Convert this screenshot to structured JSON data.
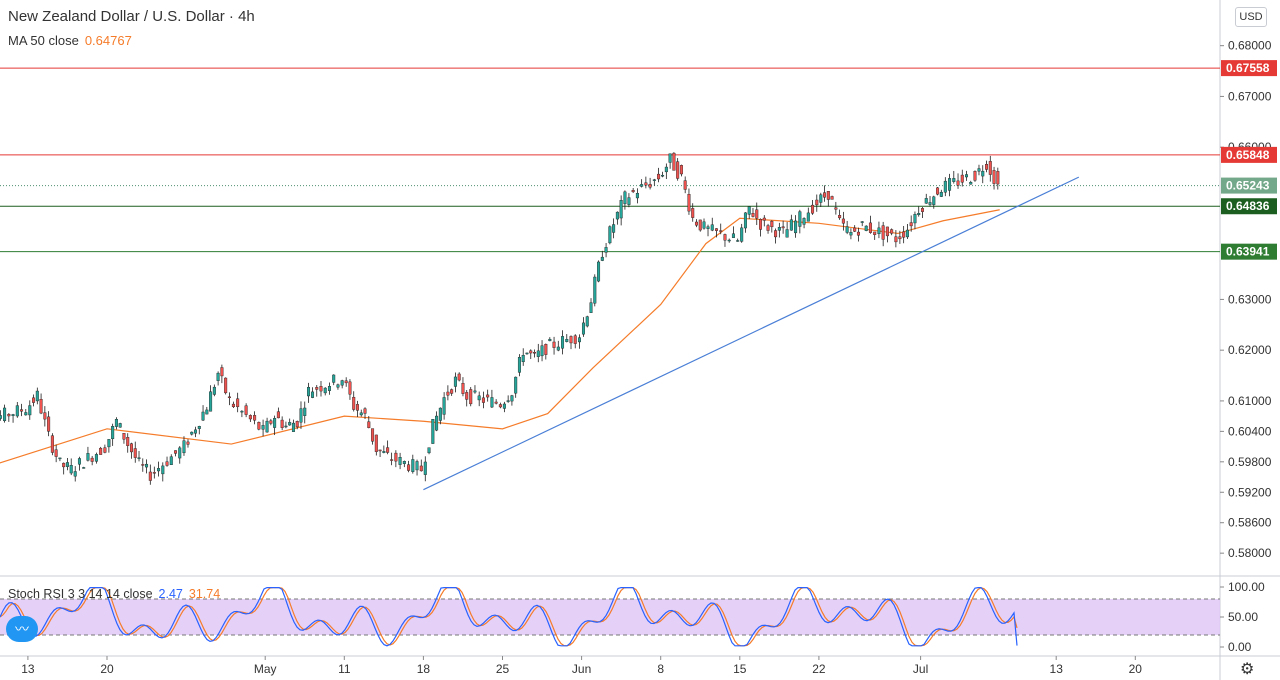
{
  "header": {
    "title": "New Zealand Dollar / U.S. Dollar · 4h",
    "ma_label": "MA 50 close",
    "ma_value": "0.64767",
    "currency": "USD"
  },
  "stoch": {
    "label": "Stoch RSI 3 3 14 14 close",
    "k_value": "2.47",
    "d_value": "31.74"
  },
  "chart_data": [
    {
      "type": "line",
      "symbol": "NZDUSD",
      "timeframe": "4h",
      "price_axis": {
        "ylim": [
          0.5755,
          0.689
        ],
        "ticks": [
          "0.68000",
          "0.67000",
          "0.66000",
          "0.63000",
          "0.62000",
          "0.61000",
          "0.60400",
          "0.59800",
          "0.59200",
          "0.58600",
          "0.58000"
        ]
      },
      "time_axis": {
        "labels": [
          "13",
          "20",
          "May",
          "11",
          "18",
          "25",
          "Jun",
          "8",
          "15",
          "22",
          "Jul",
          "13",
          "20"
        ],
        "positions": [
          "Apr 13",
          "Apr 20",
          "May 4",
          "May 11",
          "May 18",
          "May 25",
          "Jun 1",
          "Jun 8",
          "Jun 15",
          "Jun 22",
          "Jul 1",
          "Jul 13",
          "Jul 20"
        ]
      },
      "price_path": [
        {
          "date": "Apr 8",
          "close": 0.602
        },
        {
          "date": "Apr 10",
          "close": 0.6065
        },
        {
          "date": "Apr 13",
          "close": 0.6085
        },
        {
          "date": "Apr 14",
          "close": 0.611
        },
        {
          "date": "Apr 15",
          "close": 0.603
        },
        {
          "date": "Apr 16",
          "close": 0.5975
        },
        {
          "date": "Apr 17",
          "close": 0.5965
        },
        {
          "date": "Apr 20",
          "close": 0.601
        },
        {
          "date": "Apr 21",
          "close": 0.606
        },
        {
          "date": "Apr 22",
          "close": 0.6015
        },
        {
          "date": "Apr 23",
          "close": 0.5975
        },
        {
          "date": "Apr 24",
          "close": 0.5955
        },
        {
          "date": "Apr 27",
          "close": 0.601
        },
        {
          "date": "Apr 28",
          "close": 0.605
        },
        {
          "date": "Apr 29",
          "close": 0.609
        },
        {
          "date": "Apr 30",
          "close": 0.6155
        },
        {
          "date": "May 1",
          "close": 0.61
        },
        {
          "date": "May 4",
          "close": 0.604
        },
        {
          "date": "May 5",
          "close": 0.607
        },
        {
          "date": "May 6",
          "close": 0.605
        },
        {
          "date": "May 7",
          "close": 0.606
        },
        {
          "date": "May 8",
          "close": 0.612
        },
        {
          "date": "May 11",
          "close": 0.6145
        },
        {
          "date": "May 12",
          "close": 0.609
        },
        {
          "date": "May 13",
          "close": 0.607
        },
        {
          "date": "May 14",
          "close": 0.6005
        },
        {
          "date": "May 15",
          "close": 0.599
        },
        {
          "date": "May 18",
          "close": 0.5965
        },
        {
          "date": "May 19",
          "close": 0.605
        },
        {
          "date": "May 20",
          "close": 0.6105
        },
        {
          "date": "May 21",
          "close": 0.614
        },
        {
          "date": "May 22",
          "close": 0.611
        },
        {
          "date": "May 25",
          "close": 0.6095
        },
        {
          "date": "May 26",
          "close": 0.612
        },
        {
          "date": "May 27",
          "close": 0.62
        },
        {
          "date": "May 28",
          "close": 0.6185
        },
        {
          "date": "May 29",
          "close": 0.6205
        },
        {
          "date": "Jun 1",
          "close": 0.623
        },
        {
          "date": "Jun 2",
          "close": 0.63
        },
        {
          "date": "Jun 3",
          "close": 0.6395
        },
        {
          "date": "Jun 4",
          "close": 0.645
        },
        {
          "date": "Jun 5",
          "close": 0.65
        },
        {
          "date": "Jun 8",
          "close": 0.654
        },
        {
          "date": "Jun 9",
          "close": 0.6575
        },
        {
          "date": "Jun 10",
          "close": 0.654
        },
        {
          "date": "Jun 11",
          "close": 0.646
        },
        {
          "date": "Jun 12",
          "close": 0.644
        },
        {
          "date": "Jun 15",
          "close": 0.6415
        },
        {
          "date": "Jun 16",
          "close": 0.648
        },
        {
          "date": "Jun 17",
          "close": 0.645
        },
        {
          "date": "Jun 18",
          "close": 0.644
        },
        {
          "date": "Jun 19",
          "close": 0.643
        },
        {
          "date": "Jun 22",
          "close": 0.649
        },
        {
          "date": "Jun 23",
          "close": 0.651
        },
        {
          "date": "Jun 24",
          "close": 0.645
        },
        {
          "date": "Jun 25",
          "close": 0.643
        },
        {
          "date": "Jun 26",
          "close": 0.6445
        },
        {
          "date": "Jun 29",
          "close": 0.642
        },
        {
          "date": "Jun 30",
          "close": 0.644
        },
        {
          "date": "Jul 1",
          "close": 0.648
        },
        {
          "date": "Jul 2",
          "close": 0.65
        },
        {
          "date": "Jul 3",
          "close": 0.652
        },
        {
          "date": "Jul 6",
          "close": 0.6545
        },
        {
          "date": "Jul 7",
          "close": 0.657
        },
        {
          "date": "Jul 8",
          "close": 0.6524
        }
      ],
      "ma50_path": [
        {
          "date": "Apr 8",
          "value": 0.596
        },
        {
          "date": "Apr 20",
          "value": 0.6045
        },
        {
          "date": "May 1",
          "value": 0.6015
        },
        {
          "date": "May 11",
          "value": 0.607
        },
        {
          "date": "May 18",
          "value": 0.606
        },
        {
          "date": "May 25",
          "value": 0.6045
        },
        {
          "date": "May 29",
          "value": 0.6075
        },
        {
          "date": "Jun 2",
          "value": 0.6165
        },
        {
          "date": "Jun 8",
          "value": 0.629
        },
        {
          "date": "Jun 12",
          "value": 0.641
        },
        {
          "date": "Jun 15",
          "value": 0.646
        },
        {
          "date": "Jun 22",
          "value": 0.645
        },
        {
          "date": "Jun 29",
          "value": 0.643
        },
        {
          "date": "Jul 3",
          "value": 0.6455
        },
        {
          "date": "Jul 8",
          "value": 0.64767
        }
      ],
      "horizontal_levels": [
        {
          "price": "0.67558",
          "color": "#e53935",
          "label_bg": "#e53935"
        },
        {
          "price": "0.65848",
          "color": "#e53935",
          "label_bg": "#e53935"
        },
        {
          "price": "0.64836",
          "color": "#1b5e20",
          "label_bg": "#1b5e20"
        },
        {
          "price": "0.63941",
          "color": "#2e7d32",
          "label_bg": "#2e7d32"
        }
      ],
      "current_price": {
        "price": "0.65243",
        "label_bg": "#74a88a"
      },
      "trendline": {
        "from": {
          "date": "May 18",
          "price": 0.5925
        },
        "to": {
          "date": "Jul 15",
          "price": 0.6541
        },
        "color": "#4a7fd6"
      },
      "colors": {
        "up": "#26a69a",
        "down": "#ef5350",
        "ma": "#f57c2a"
      }
    },
    {
      "type": "line",
      "name": "Stoch RSI 3 3 14 14 close",
      "ylim": [
        0,
        100
      ],
      "ticks": [
        "100.00",
        "50.00",
        "0.00"
      ],
      "bands": [
        20,
        80
      ],
      "band_fill": "#e1c8f7",
      "k_last": 2.47,
      "d_last": 31.74,
      "colors": {
        "k": "#2962ff",
        "d": "#f57c2a"
      }
    }
  ]
}
